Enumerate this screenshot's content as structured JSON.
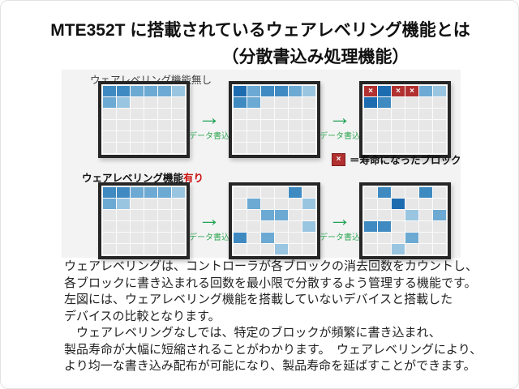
{
  "title": {
    "line1": "MTE352T に搭載されているウェアレベリング機能とは",
    "line2": "（分散書込み処理機能）"
  },
  "sections": {
    "without": {
      "label": "ウェアレベリング機能無し"
    },
    "with": {
      "label_prefix": "ウェアレベリング機能",
      "label_suffix": "有り"
    }
  },
  "arrow": {
    "glyph": "→",
    "label": "データ書込"
  },
  "legend": {
    "symbol": "×",
    "text": "＝寿命になったブロック"
  },
  "colors": {
    "panel_bg": "#f3f3f4",
    "arrow_green": "#23a455",
    "red_block": "#b13030",
    "accent_red_text": "#cc1111"
  },
  "cell_palette": {
    ".": "#e7e7e7",
    "1": "#1d6cb0",
    "2": "#3f8ac1",
    "3": "#6ca9d3",
    "4": "#9ac5e1",
    "5": "#c6dcee",
    "X": "#b13030"
  },
  "grids": {
    "without": [
      [
        "223334",
        "34....",
        "......",
        "......",
        "......",
        "......"
      ],
      [
        "132234",
        "23....",
        "......",
        "......",
        "......",
        "......"
      ],
      [
        "X1XX34",
        "12....",
        "......",
        "......",
        "......",
        "......"
      ]
    ],
    "with": [
      [
        "223334",
        "34....",
        "......",
        "......",
        "......",
        "......"
      ],
      [
        "....2.",
        ".3...4",
        "..33..",
        ".....4",
        "2.3...",
        "...4.."
      ],
      [
        ".2..2.",
        "..1...",
        "...4.3",
        "22....",
        "...3..",
        "..4..."
      ]
    ]
  },
  "body_lines": [
    "ウェアレベリングは、コントローラが各ブロックの消去回数をカウントし、",
    "各ブロックに書き込まれる回数を最小限で分散するよう管理する機能です。",
    "左図には、ウェアレベリング機能を搭載していないデバイスと搭載した",
    "デバイスの比較となります。",
    "　ウェアレベリングなしでは、特定のブロックが頻繁に書き込まれ、",
    "製品寿命が大幅に短縮されることがわかります。　ウェアレベリングにより、",
    "より均一な書き込み配布が可能になり、製品寿命を延ばすことができます。"
  ]
}
